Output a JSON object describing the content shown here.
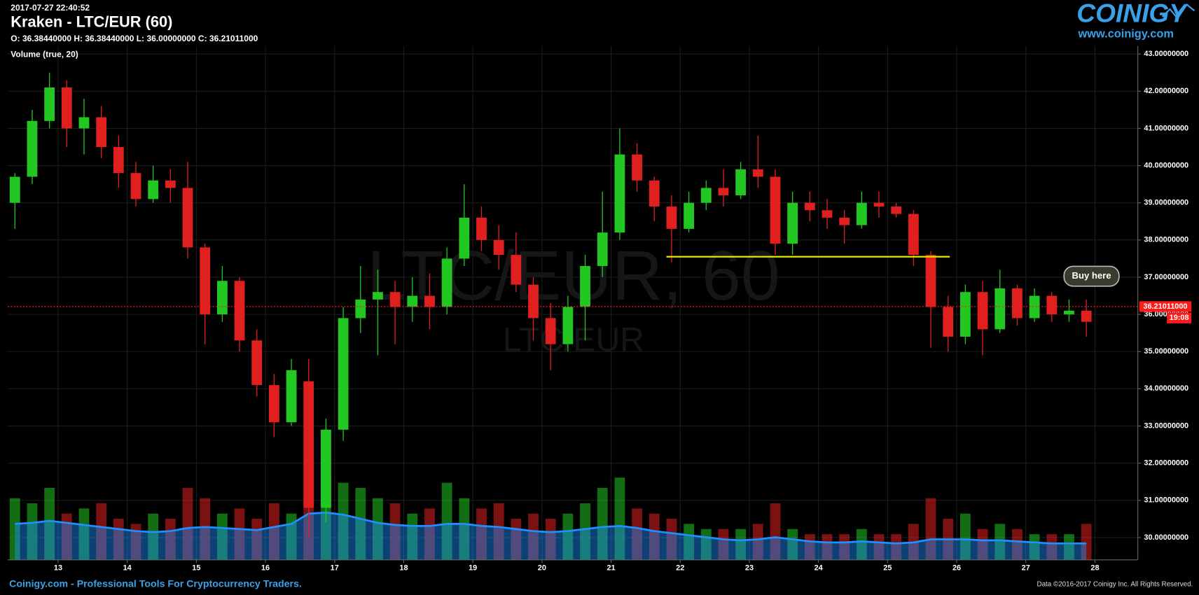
{
  "chart_data": {
    "type": "candlestick",
    "timestamp": "2017-07-27 22:40:52",
    "title": "Kraken - LTC/EUR (60)",
    "ohlc_text": "O: 36.38440000 H: 36.38440000 L: 36.00000000 C: 36.21011000",
    "indicator_label": "Volume (true, 20)",
    "watermark": "LTC/EUR, 60",
    "watermark_sub": "LTC/EUR",
    "logo": "COINIGY",
    "logo_url": "www.coinigy.com",
    "footer_left": "Coinigy.com - Professional Tools For Cryptocurrency Traders.",
    "footer_right": "Data ©2016-2017 Coinigy Inc. All Rights Reserved.",
    "up_color": "#22c722",
    "down_color": "#e01f1f",
    "volume_ma_color": "#1e90ff",
    "grid": true,
    "xlim": [
      12.27,
      28.62
    ],
    "xticks": [
      13,
      14,
      15,
      16,
      17,
      18,
      19,
      20,
      21,
      22,
      23,
      24,
      25,
      26,
      27,
      28
    ],
    "ylim": [
      29.4,
      43.22
    ],
    "yticks": [
      {
        "value": 30,
        "label": "30.00000000"
      },
      {
        "value": 31,
        "label": "31.00000000"
      },
      {
        "value": 32,
        "label": "32.00000000"
      },
      {
        "value": 33,
        "label": "33.00000000"
      },
      {
        "value": 34,
        "label": "34.00000000"
      },
      {
        "value": 35,
        "label": "35.00000000"
      },
      {
        "value": 36,
        "label": "36.00000000"
      },
      {
        "value": 37,
        "label": "37.00000000"
      },
      {
        "value": 38,
        "label": "38.00000000"
      },
      {
        "value": 39,
        "label": "39.00000000"
      },
      {
        "value": 40,
        "label": "40.00000000"
      },
      {
        "value": 41,
        "label": "41.00000000"
      },
      {
        "value": 42,
        "label": "42.00000000"
      },
      {
        "value": 43,
        "label": "43.00000000"
      }
    ],
    "y2lim": [
      0,
      500
    ],
    "x": [
      12.375,
      12.625,
      12.875,
      13.125,
      13.375,
      13.625,
      13.875,
      14.125,
      14.375,
      14.625,
      14.875,
      15.125,
      15.375,
      15.625,
      15.875,
      16.125,
      16.375,
      16.625,
      16.875,
      17.125,
      17.375,
      17.625,
      17.875,
      18.125,
      18.375,
      18.625,
      18.875,
      19.125,
      19.375,
      19.625,
      19.875,
      20.125,
      20.375,
      20.625,
      20.875,
      21.125,
      21.375,
      21.625,
      21.875,
      22.125,
      22.375,
      22.625,
      22.875,
      23.125,
      23.375,
      23.625,
      23.875,
      24.125,
      24.375,
      24.625,
      24.875,
      25.125,
      25.375,
      25.625,
      25.875,
      26.125,
      26.375,
      26.625,
      26.875,
      27.125,
      27.375,
      27.625,
      27.875
    ],
    "open": [
      39.0,
      39.7,
      41.2,
      42.1,
      41.0,
      41.3,
      40.5,
      39.8,
      39.1,
      39.6,
      39.4,
      37.8,
      36.0,
      36.9,
      35.3,
      34.1,
      33.1,
      34.2,
      30.8,
      32.9,
      35.9,
      36.4,
      36.6,
      36.2,
      36.5,
      36.2,
      37.5,
      38.6,
      38.0,
      37.6,
      36.8,
      35.9,
      35.2,
      36.2,
      37.3,
      38.2,
      40.3,
      39.6,
      38.9,
      38.3,
      39.0,
      39.4,
      39.2,
      39.9,
      39.7,
      37.9,
      39.0,
      38.8,
      38.6,
      38.4,
      39.0,
      38.9,
      38.7,
      37.6,
      36.2,
      35.4,
      36.6,
      35.6,
      36.7,
      35.9,
      36.5,
      36.0,
      36.1
    ],
    "high": [
      39.8,
      41.5,
      42.5,
      42.3,
      41.8,
      41.6,
      40.8,
      40.1,
      40.0,
      39.9,
      40.1,
      37.9,
      37.3,
      37.0,
      35.6,
      34.4,
      34.8,
      34.8,
      33.2,
      36.2,
      37.3,
      37.2,
      36.9,
      37.0,
      37.1,
      37.8,
      39.5,
      38.9,
      38.4,
      38.2,
      37.0,
      36.3,
      36.5,
      37.6,
      39.3,
      41.0,
      40.6,
      39.7,
      39.2,
      39.3,
      39.6,
      39.9,
      40.1,
      40.8,
      39.9,
      39.3,
      39.3,
      39.1,
      38.8,
      39.3,
      39.3,
      39.0,
      38.8,
      37.7,
      36.5,
      36.8,
      36.9,
      37.2,
      36.8,
      36.7,
      36.6,
      36.4,
      36.4
    ],
    "low": [
      38.3,
      39.5,
      41.0,
      40.5,
      40.3,
      40.2,
      39.4,
      38.9,
      39.0,
      39.0,
      37.5,
      35.2,
      35.8,
      35.0,
      33.8,
      32.7,
      33.0,
      30.0,
      30.4,
      32.6,
      35.5,
      34.9,
      35.2,
      35.8,
      35.6,
      36.0,
      37.3,
      37.7,
      37.2,
      36.6,
      35.3,
      34.5,
      35.0,
      35.3,
      37.0,
      38.0,
      39.3,
      38.5,
      37.4,
      38.2,
      38.8,
      38.9,
      39.1,
      39.4,
      37.6,
      37.6,
      38.5,
      38.3,
      37.9,
      38.3,
      38.6,
      38.6,
      37.3,
      35.1,
      35.0,
      35.2,
      34.9,
      35.5,
      35.7,
      35.8,
      35.8,
      35.8,
      35.4
    ],
    "close": [
      39.7,
      41.2,
      42.1,
      41.0,
      41.3,
      40.5,
      39.8,
      39.1,
      39.6,
      39.4,
      37.8,
      36.0,
      36.9,
      35.3,
      34.1,
      33.1,
      34.5,
      30.8,
      32.9,
      35.9,
      36.4,
      36.6,
      36.2,
      36.5,
      36.2,
      37.5,
      38.6,
      38.0,
      37.6,
      36.8,
      35.9,
      35.2,
      36.2,
      37.3,
      38.2,
      40.3,
      39.6,
      38.9,
      38.3,
      39.0,
      39.4,
      39.2,
      39.9,
      39.7,
      37.9,
      39.0,
      38.8,
      38.6,
      38.4,
      39.0,
      38.9,
      38.7,
      37.6,
      36.2,
      35.4,
      36.6,
      35.6,
      36.7,
      35.9,
      36.5,
      36.0,
      36.1,
      35.8
    ],
    "volume": [
      60,
      55,
      70,
      45,
      50,
      55,
      40,
      35,
      45,
      40,
      70,
      60,
      45,
      50,
      40,
      55,
      45,
      95,
      80,
      75,
      70,
      60,
      55,
      45,
      50,
      75,
      60,
      50,
      55,
      40,
      45,
      40,
      45,
      55,
      70,
      80,
      50,
      45,
      40,
      35,
      30,
      30,
      30,
      35,
      55,
      30,
      25,
      25,
      25,
      30,
      25,
      25,
      35,
      60,
      40,
      45,
      30,
      35,
      30,
      25,
      25,
      25,
      35
    ],
    "volume_ma": [
      35,
      36,
      38,
      36,
      34,
      32,
      30,
      28,
      27,
      28,
      31,
      32,
      31,
      30,
      29,
      32,
      35,
      45,
      46,
      44,
      40,
      36,
      34,
      33,
      33,
      35,
      35,
      33,
      32,
      30,
      28,
      27,
      28,
      30,
      32,
      33,
      31,
      28,
      26,
      24,
      22,
      20,
      19,
      20,
      22,
      20,
      18,
      17,
      17,
      18,
      17,
      16,
      17,
      20,
      20,
      20,
      19,
      19,
      18,
      17,
      16,
      16,
      16
    ],
    "support_line": {
      "level": 37.55,
      "x1": 21.8,
      "x2": 25.9,
      "color": "#e6e600"
    },
    "last_price": {
      "value": 36.21011,
      "label": "36.21011000",
      "timer": "19:08",
      "color": "#ff1a1a"
    },
    "callout": {
      "text": "Buy here",
      "x": 27.95,
      "y": 36.8
    }
  }
}
